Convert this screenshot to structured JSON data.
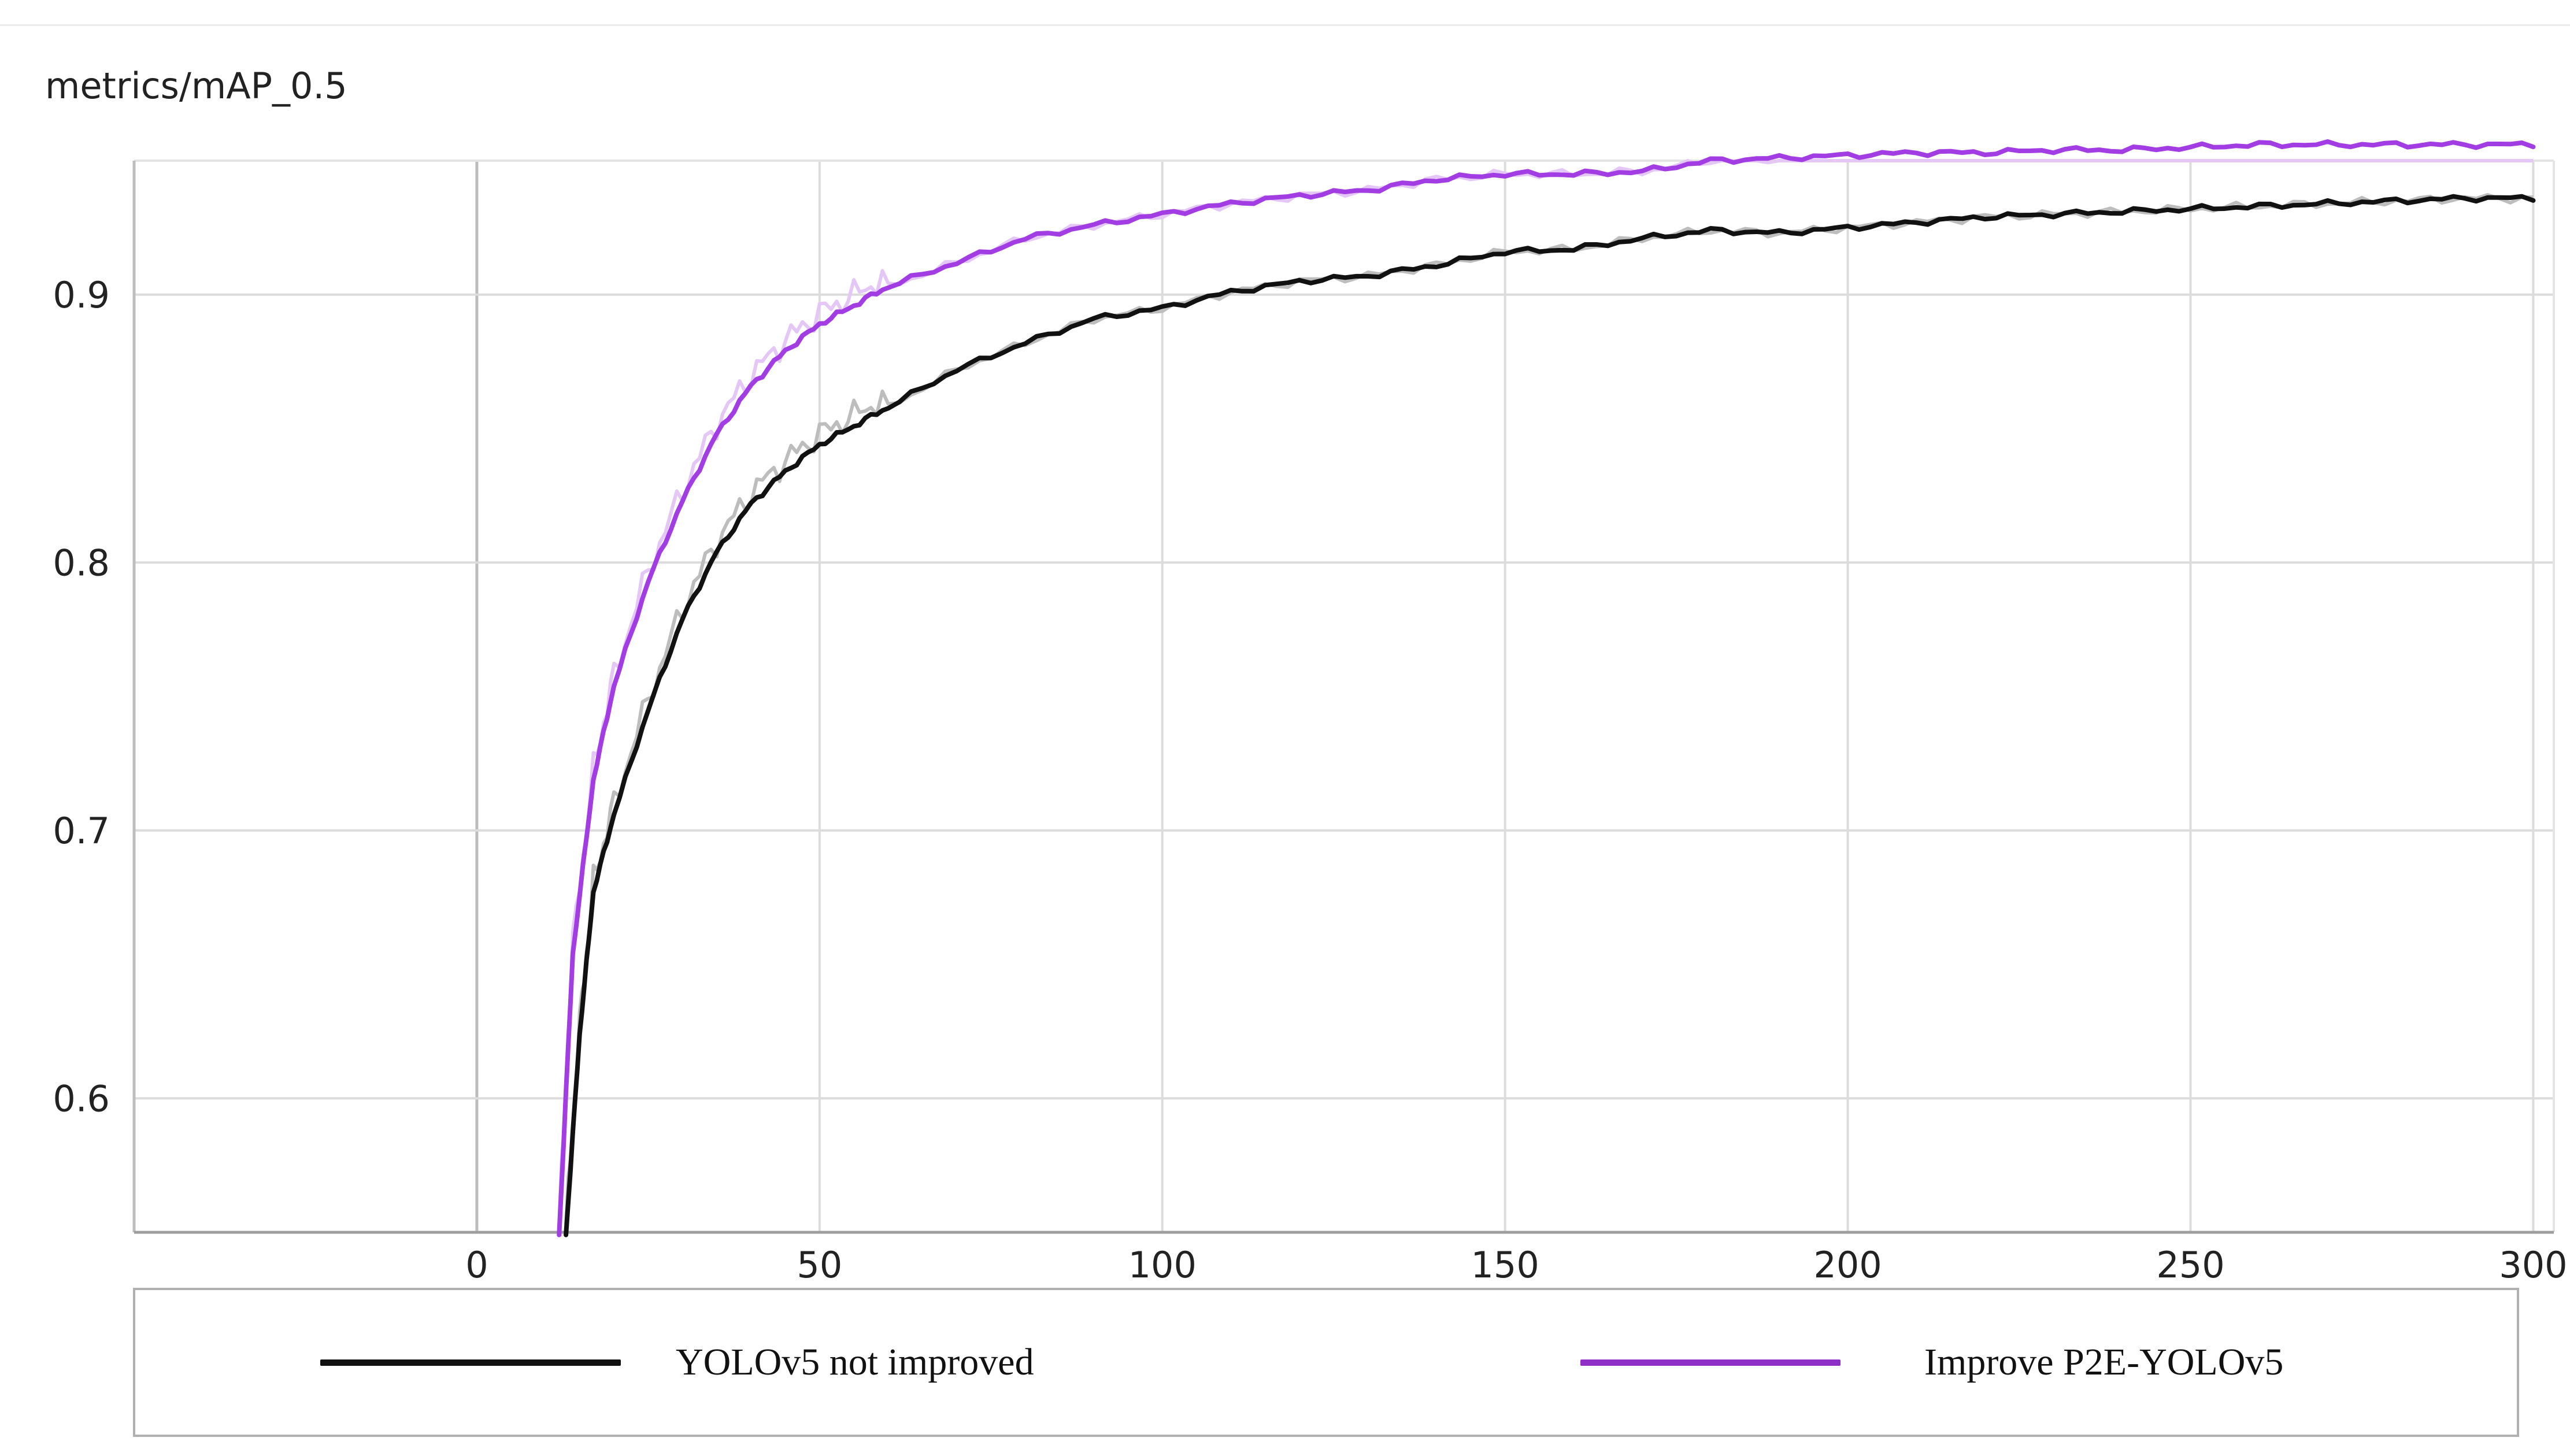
{
  "chart_data": {
    "type": "line",
    "title": "metrics/mAP_0.5",
    "xlabel": "",
    "ylabel": "",
    "xlim": [
      -50,
      303
    ],
    "ylim": [
      0.55,
      0.95
    ],
    "x_ticks": [
      "0",
      "50",
      "100",
      "150",
      "200",
      "250",
      "300"
    ],
    "y_ticks": [
      "0.6",
      "0.7",
      "0.8",
      "0.9"
    ],
    "grid": true,
    "legend_position": "bottom",
    "series": [
      {
        "name": "YOLOv5 not improved",
        "color": "#111111",
        "raw_color": "#bdbdbd",
        "x": [
          13,
          15,
          17,
          20,
          25,
          30,
          35,
          40,
          45,
          50,
          55,
          60,
          70,
          80,
          90,
          100,
          110,
          120,
          130,
          140,
          150,
          160,
          170,
          180,
          190,
          200,
          210,
          220,
          230,
          240,
          250,
          260,
          270,
          280,
          290,
          300
        ],
        "values": [
          0.549,
          0.624,
          0.677,
          0.706,
          0.745,
          0.779,
          0.804,
          0.822,
          0.834,
          0.844,
          0.851,
          0.858,
          0.872,
          0.882,
          0.891,
          0.895,
          0.901,
          0.905,
          0.907,
          0.911,
          0.916,
          0.917,
          0.921,
          0.924,
          0.923,
          0.925,
          0.927,
          0.929,
          0.93,
          0.931,
          0.932,
          0.933,
          0.934,
          0.935,
          0.936,
          0.936
        ]
      },
      {
        "name": "Improve  P2E-YOLOv5",
        "color": "#a23de3",
        "raw_color": "#e4c6f7",
        "x": [
          12,
          14,
          17,
          20,
          25,
          30,
          35,
          40,
          45,
          50,
          55,
          60,
          70,
          80,
          90,
          100,
          110,
          120,
          130,
          140,
          150,
          160,
          170,
          180,
          190,
          200,
          210,
          220,
          230,
          240,
          250,
          260,
          270,
          280,
          290,
          300
        ],
        "values": [
          0.549,
          0.654,
          0.719,
          0.754,
          0.793,
          0.823,
          0.848,
          0.866,
          0.879,
          0.889,
          0.896,
          0.903,
          0.912,
          0.921,
          0.926,
          0.93,
          0.934,
          0.937,
          0.939,
          0.943,
          0.945,
          0.945,
          0.946,
          0.95,
          0.951,
          0.952,
          0.953,
          0.953,
          0.954,
          0.954,
          0.955,
          0.956,
          0.956,
          0.956,
          0.956,
          0.956
        ]
      }
    ]
  },
  "legend": {
    "items": [
      {
        "label": "YOLOv5 not improved",
        "color": "#111111"
      },
      {
        "label": "Improve  P2E-YOLOv5",
        "color": "#8e2fc8"
      }
    ]
  }
}
